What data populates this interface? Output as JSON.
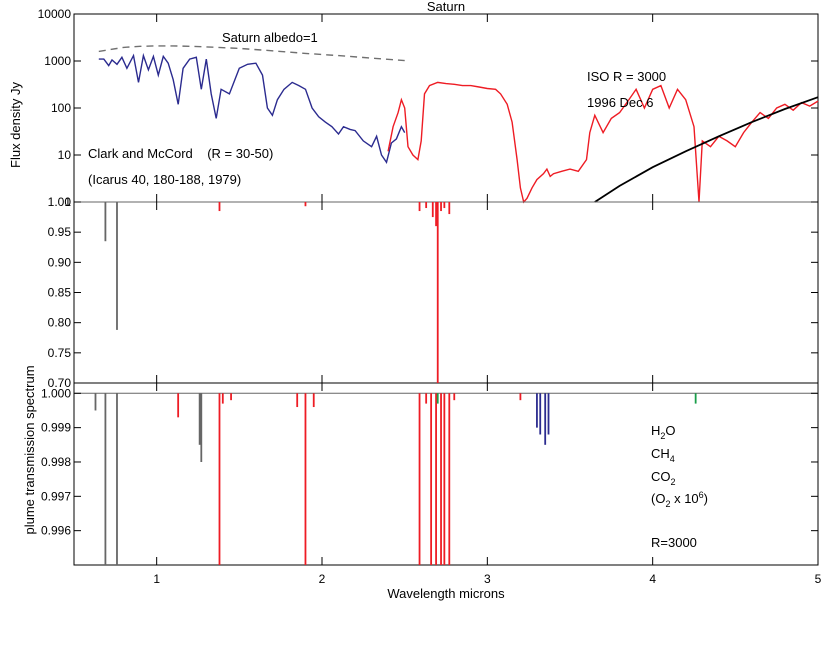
{
  "chart_data": [
    {
      "panel": "top",
      "type": "line",
      "title": "Saturn",
      "ylabel": "Flux density Jy",
      "yscale": "log",
      "xlim": [
        0.5,
        5.0
      ],
      "ylim": [
        1,
        10000
      ],
      "y_ticks": [
        "1",
        "10",
        "100",
        "1000",
        "10000"
      ],
      "annotations": {
        "albedo": "Saturn albedo=1",
        "clark_line1": "Clark and McCord    (R = 30-50)",
        "clark_line2": "(Icarus 40, 180-188, 1979)",
        "iso_line1": "ISO R = 3000",
        "iso_line2": "1996 Dec 6"
      },
      "colors": {
        "albedo": "#707070",
        "clark": "#2b2b8f",
        "iso": "#ee1c24",
        "model": "#000000"
      },
      "series": [
        {
          "key": "albedo",
          "style": "dashed",
          "x": [
            0.65,
            0.8,
            0.9,
            1.0,
            1.1,
            1.2,
            1.3,
            1.5,
            1.7,
            1.9,
            2.1,
            2.3,
            2.5
          ],
          "y": [
            1600,
            1950,
            2050,
            2100,
            2100,
            2050,
            2000,
            1850,
            1650,
            1450,
            1300,
            1150,
            1020
          ]
        },
        {
          "key": "clark",
          "style": "solid",
          "x": [
            0.65,
            0.68,
            0.71,
            0.73,
            0.76,
            0.79,
            0.82,
            0.86,
            0.89,
            0.92,
            0.95,
            0.98,
            1.01,
            1.04,
            1.07,
            1.1,
            1.13,
            1.16,
            1.2,
            1.24,
            1.27,
            1.3,
            1.33,
            1.36,
            1.39,
            1.44,
            1.5,
            1.55,
            1.6,
            1.64,
            1.67,
            1.7,
            1.73,
            1.77,
            1.82,
            1.86,
            1.9,
            1.94,
            1.98,
            2.02,
            2.06,
            2.1,
            2.13,
            2.17,
            2.2,
            2.25,
            2.3,
            2.33,
            2.36,
            2.39,
            2.42,
            2.45,
            2.48,
            2.5
          ],
          "y": [
            1100,
            1100,
            800,
            1050,
            850,
            1200,
            700,
            1300,
            350,
            1300,
            650,
            1250,
            500,
            1250,
            900,
            400,
            120,
            700,
            1100,
            1200,
            250,
            1100,
            200,
            60,
            250,
            200,
            700,
            850,
            900,
            500,
            100,
            70,
            150,
            250,
            350,
            300,
            250,
            100,
            65,
            50,
            40,
            28,
            40,
            35,
            33,
            20,
            15,
            25,
            10,
            7,
            18,
            22,
            40,
            30
          ]
        },
        {
          "key": "iso",
          "style": "solid",
          "x": [
            2.4,
            2.43,
            2.46,
            2.48,
            2.5,
            2.52,
            2.55,
            2.58,
            2.6,
            2.62,
            2.65,
            2.7,
            2.75,
            2.8,
            2.85,
            2.9,
            2.95,
            3.0,
            3.05,
            3.08,
            3.12,
            3.15,
            3.18,
            3.2,
            3.22,
            3.24,
            3.27,
            3.3,
            3.34,
            3.36,
            3.38,
            3.4,
            3.45,
            3.5,
            3.55,
            3.6,
            3.62,
            3.65,
            3.7,
            3.75,
            3.8,
            3.85,
            3.9,
            3.95,
            4.0,
            4.05,
            4.1,
            4.15,
            4.2,
            4.25,
            4.28,
            4.3,
            4.35,
            4.4,
            4.45,
            4.5,
            4.55,
            4.6,
            4.65,
            4.7,
            4.75,
            4.8,
            4.85,
            4.9,
            4.95,
            5.0
          ],
          "y": [
            12,
            40,
            80,
            150,
            100,
            15,
            10,
            8,
            20,
            200,
            300,
            350,
            330,
            320,
            300,
            300,
            280,
            260,
            250,
            200,
            120,
            50,
            8,
            2,
            1,
            1.2,
            2,
            3,
            4,
            5,
            3.5,
            4,
            4.5,
            5,
            4.5,
            8,
            30,
            70,
            30,
            60,
            80,
            140,
            250,
            100,
            250,
            300,
            100,
            250,
            150,
            40,
            1,
            20,
            15,
            25,
            20,
            15,
            30,
            50,
            80,
            60,
            100,
            120,
            90,
            130,
            110,
            140
          ]
        },
        {
          "key": "model",
          "style": "solid",
          "x": [
            3.65,
            3.8,
            4.0,
            4.2,
            4.4,
            4.6,
            4.8,
            5.0
          ],
          "y": [
            1,
            2.2,
            5.5,
            12,
            25,
            50,
            95,
            170
          ]
        }
      ]
    },
    {
      "panel": "middle",
      "type": "line",
      "xlim": [
        0.5,
        5.0
      ],
      "ylim": [
        0.7,
        1.0
      ],
      "y_ticks": [
        "1.00",
        "0.95",
        "0.90",
        "0.85",
        "0.80",
        "0.75",
        "0.70"
      ],
      "colors": {
        "o2": "#666666",
        "h2o": "#ee1c24"
      },
      "lines": [
        {
          "species": "o2",
          "x": 0.69,
          "y": 0.935
        },
        {
          "species": "o2",
          "x": 0.76,
          "y": 0.788
        },
        {
          "species": "h2o",
          "x": 1.38,
          "y": 0.985
        },
        {
          "species": "h2o",
          "x": 1.9,
          "y": 0.993
        },
        {
          "species": "h2o",
          "x": 2.59,
          "y": 0.985
        },
        {
          "species": "h2o",
          "x": 2.63,
          "y": 0.99
        },
        {
          "species": "h2o",
          "x": 2.67,
          "y": 0.975
        },
        {
          "species": "h2o",
          "x": 2.69,
          "y": 0.96
        },
        {
          "species": "h2o",
          "x": 2.7,
          "y": 0.7
        },
        {
          "species": "h2o",
          "x": 2.72,
          "y": 0.985
        },
        {
          "species": "h2o",
          "x": 2.74,
          "y": 0.99
        },
        {
          "species": "h2o",
          "x": 2.77,
          "y": 0.98
        }
      ]
    },
    {
      "panel": "bottom",
      "type": "line",
      "ylabel": "plume transmission spectrum",
      "xlabel": "Wavelength microns",
      "xlim": [
        0.5,
        5.0
      ],
      "ylim": [
        0.995,
        1.0003
      ],
      "x_ticks": [
        "1",
        "2",
        "3",
        "4",
        "5"
      ],
      "y_ticks": [
        "1.000",
        "0.999",
        "0.998",
        "0.997",
        "0.996"
      ],
      "legend": [
        "H2O",
        "CH4",
        "CO2",
        "(O2 x 10^6)"
      ],
      "resolution_label": "R=3000",
      "colors": {
        "h2o": "#ee1c24",
        "ch4": "#2b2b8f",
        "co2": "#1a9e4a",
        "o2": "#666666"
      },
      "lines": [
        {
          "species": "o2",
          "x": 0.63,
          "y": 0.9995
        },
        {
          "species": "o2",
          "x": 0.69,
          "y": 0.995
        },
        {
          "species": "o2",
          "x": 0.76,
          "y": 0.995
        },
        {
          "species": "o2",
          "x": 1.26,
          "y": 0.9985
        },
        {
          "species": "o2",
          "x": 1.27,
          "y": 0.998
        },
        {
          "species": "h2o",
          "x": 1.13,
          "y": 0.9993
        },
        {
          "species": "h2o",
          "x": 1.38,
          "y": 0.995
        },
        {
          "species": "h2o",
          "x": 1.4,
          "y": 0.9997
        },
        {
          "species": "h2o",
          "x": 1.45,
          "y": 0.9998
        },
        {
          "species": "h2o",
          "x": 1.85,
          "y": 0.9996
        },
        {
          "species": "h2o",
          "x": 1.9,
          "y": 0.995
        },
        {
          "species": "h2o",
          "x": 1.95,
          "y": 0.9996
        },
        {
          "species": "h2o",
          "x": 2.59,
          "y": 0.995
        },
        {
          "species": "h2o",
          "x": 2.63,
          "y": 0.9997
        },
        {
          "species": "h2o",
          "x": 2.66,
          "y": 0.995
        },
        {
          "species": "h2o",
          "x": 2.69,
          "y": 0.995
        },
        {
          "species": "h2o",
          "x": 2.72,
          "y": 0.995
        },
        {
          "species": "h2o",
          "x": 2.74,
          "y": 0.995
        },
        {
          "species": "h2o",
          "x": 2.77,
          "y": 0.995
        },
        {
          "species": "h2o",
          "x": 2.8,
          "y": 0.9998
        },
        {
          "species": "h2o",
          "x": 3.2,
          "y": 0.9998
        },
        {
          "species": "ch4",
          "x": 3.3,
          "y": 0.999
        },
        {
          "species": "ch4",
          "x": 3.32,
          "y": 0.9988
        },
        {
          "species": "ch4",
          "x": 3.35,
          "y": 0.9985
        },
        {
          "species": "ch4",
          "x": 3.37,
          "y": 0.9988
        },
        {
          "species": "co2",
          "x": 2.7,
          "y": 0.9997
        },
        {
          "species": "co2",
          "x": 4.26,
          "y": 0.9997
        }
      ]
    }
  ]
}
